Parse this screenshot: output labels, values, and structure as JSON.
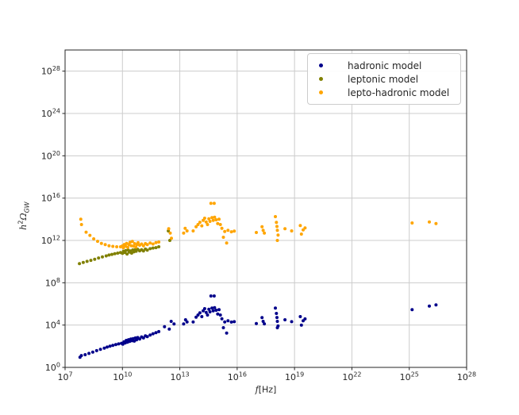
{
  "chart_data": {
    "type": "scatter",
    "title": "",
    "xlabel": "f[Hz]",
    "ylabel": "h^2*Omega_GW",
    "xscale": "log",
    "yscale": "log",
    "xlim_log10": [
      7,
      28
    ],
    "ylim_log10": [
      0,
      30
    ],
    "x_ticks_log10": [
      7,
      10,
      13,
      16,
      19,
      22,
      25,
      28
    ],
    "y_ticks_log10": [
      0,
      4,
      8,
      12,
      16,
      20,
      24,
      28
    ],
    "grid": true,
    "grid_color": "#cccccc",
    "spine_color": "#262626",
    "legend_position": "upper right",
    "xlabel_parts": {
      "var": "f",
      "unit": "[Hz]"
    },
    "ylabel_parts": {
      "var": "h",
      "exp": "2",
      "symbol": "Ω",
      "sub": "GW"
    },
    "tick_mantissa": "10",
    "series": [
      {
        "name": "hadronic model",
        "color": "#00008b",
        "marker": "dot",
        "points_log10": [
          [
            7.78,
            0.95
          ],
          [
            7.85,
            1.12
          ],
          [
            8.05,
            1.2
          ],
          [
            8.25,
            1.32
          ],
          [
            8.45,
            1.45
          ],
          [
            8.65,
            1.58
          ],
          [
            8.85,
            1.7
          ],
          [
            9.05,
            1.82
          ],
          [
            9.2,
            1.92
          ],
          [
            9.35,
            2.0
          ],
          [
            9.5,
            2.08
          ],
          [
            9.65,
            2.15
          ],
          [
            9.8,
            2.22
          ],
          [
            9.95,
            2.28
          ],
          [
            10.02,
            2.2
          ],
          [
            10.08,
            2.42
          ],
          [
            10.14,
            2.3
          ],
          [
            10.2,
            2.55
          ],
          [
            10.26,
            2.38
          ],
          [
            10.32,
            2.62
          ],
          [
            10.38,
            2.45
          ],
          [
            10.44,
            2.68
          ],
          [
            10.5,
            2.52
          ],
          [
            10.56,
            2.72
          ],
          [
            10.62,
            2.48
          ],
          [
            10.68,
            2.78
          ],
          [
            10.74,
            2.6
          ],
          [
            10.8,
            2.82
          ],
          [
            10.9,
            2.68
          ],
          [
            11.0,
            2.88
          ],
          [
            11.1,
            2.78
          ],
          [
            11.2,
            2.98
          ],
          [
            11.3,
            2.9
          ],
          [
            11.45,
            3.05
          ],
          [
            11.6,
            3.18
          ],
          [
            11.75,
            3.28
          ],
          [
            11.9,
            3.38
          ],
          [
            12.2,
            3.85
          ],
          [
            12.45,
            3.62
          ],
          [
            12.55,
            4.35
          ],
          [
            12.7,
            4.1
          ],
          [
            13.2,
            4.1
          ],
          [
            13.3,
            4.5
          ],
          [
            13.38,
            4.3
          ],
          [
            13.7,
            4.3
          ],
          [
            13.85,
            4.75
          ],
          [
            13.95,
            4.95
          ],
          [
            14.05,
            5.15
          ],
          [
            14.15,
            4.8
          ],
          [
            14.22,
            5.35
          ],
          [
            14.3,
            5.55
          ],
          [
            14.38,
            5.2
          ],
          [
            14.45,
            4.95
          ],
          [
            14.52,
            5.5
          ],
          [
            14.58,
            5.25
          ],
          [
            14.63,
            6.75
          ],
          [
            14.8,
            6.75
          ],
          [
            14.68,
            5.6
          ],
          [
            14.75,
            5.35
          ],
          [
            14.82,
            5.65
          ],
          [
            14.9,
            5.4
          ],
          [
            14.98,
            5.05
          ],
          [
            15.05,
            5.45
          ],
          [
            15.12,
            4.95
          ],
          [
            15.2,
            4.6
          ],
          [
            15.28,
            3.75
          ],
          [
            15.35,
            4.3
          ],
          [
            15.45,
            3.25
          ],
          [
            15.52,
            4.4
          ],
          [
            15.7,
            4.28
          ],
          [
            15.85,
            4.32
          ],
          [
            17.0,
            4.15
          ],
          [
            17.3,
            4.7
          ],
          [
            17.36,
            4.35
          ],
          [
            17.42,
            4.12
          ],
          [
            18.0,
            5.6
          ],
          [
            18.05,
            5.1
          ],
          [
            18.08,
            4.72
          ],
          [
            18.1,
            4.35
          ],
          [
            18.14,
            3.92
          ],
          [
            18.1,
            3.75
          ],
          [
            18.5,
            4.5
          ],
          [
            18.85,
            4.32
          ],
          [
            19.3,
            4.8
          ],
          [
            19.36,
            4.0
          ],
          [
            19.45,
            4.4
          ],
          [
            19.55,
            4.58
          ],
          [
            25.15,
            5.45
          ],
          [
            26.05,
            5.8
          ],
          [
            26.4,
            5.9
          ]
        ]
      },
      {
        "name": "leptonic model",
        "color": "#808000",
        "marker": "dot",
        "points_log10": [
          [
            7.75,
            9.8
          ],
          [
            7.95,
            9.92
          ],
          [
            8.15,
            10.02
          ],
          [
            8.35,
            10.12
          ],
          [
            8.55,
            10.22
          ],
          [
            8.75,
            10.34
          ],
          [
            8.95,
            10.44
          ],
          [
            9.15,
            10.54
          ],
          [
            9.3,
            10.62
          ],
          [
            9.45,
            10.68
          ],
          [
            9.6,
            10.74
          ],
          [
            9.75,
            10.8
          ],
          [
            9.9,
            10.85
          ],
          [
            10.0,
            10.78
          ],
          [
            10.06,
            10.98
          ],
          [
            10.12,
            10.85
          ],
          [
            10.18,
            11.05
          ],
          [
            10.24,
            10.72
          ],
          [
            10.3,
            11.08
          ],
          [
            10.36,
            10.9
          ],
          [
            10.42,
            11.0
          ],
          [
            10.48,
            10.8
          ],
          [
            10.54,
            11.1
          ],
          [
            10.6,
            10.92
          ],
          [
            10.66,
            11.12
          ],
          [
            10.72,
            10.98
          ],
          [
            10.8,
            11.15
          ],
          [
            10.9,
            11.02
          ],
          [
            11.0,
            11.12
          ],
          [
            11.1,
            11.0
          ],
          [
            11.2,
            11.18
          ],
          [
            11.3,
            11.08
          ],
          [
            11.45,
            11.22
          ],
          [
            11.6,
            11.28
          ],
          [
            11.75,
            11.32
          ],
          [
            11.9,
            11.4
          ],
          [
            12.4,
            12.9
          ],
          [
            12.48,
            12.0
          ]
        ]
      },
      {
        "name": "lepto-hadronic model",
        "color": "#ffa500",
        "marker": "dot",
        "points_log10": [
          [
            7.82,
            14.0
          ],
          [
            7.86,
            13.5
          ],
          [
            8.1,
            12.78
          ],
          [
            8.3,
            12.48
          ],
          [
            8.5,
            12.15
          ],
          [
            8.7,
            11.92
          ],
          [
            8.9,
            11.72
          ],
          [
            9.1,
            11.6
          ],
          [
            9.3,
            11.5
          ],
          [
            9.5,
            11.44
          ],
          [
            9.7,
            11.4
          ],
          [
            9.9,
            11.4
          ],
          [
            10.0,
            11.48
          ],
          [
            10.05,
            11.3
          ],
          [
            10.1,
            11.62
          ],
          [
            10.16,
            11.45
          ],
          [
            10.22,
            11.72
          ],
          [
            10.28,
            11.35
          ],
          [
            10.34,
            11.6
          ],
          [
            10.4,
            11.82
          ],
          [
            10.46,
            11.5
          ],
          [
            10.52,
            11.9
          ],
          [
            10.58,
            11.45
          ],
          [
            10.64,
            11.7
          ],
          [
            10.7,
            11.38
          ],
          [
            10.76,
            11.62
          ],
          [
            10.82,
            11.78
          ],
          [
            10.9,
            11.55
          ],
          [
            11.0,
            11.66
          ],
          [
            11.1,
            11.5
          ],
          [
            11.2,
            11.7
          ],
          [
            11.3,
            11.6
          ],
          [
            11.45,
            11.75
          ],
          [
            11.6,
            11.66
          ],
          [
            11.75,
            11.8
          ],
          [
            11.9,
            11.85
          ],
          [
            12.42,
            13.1
          ],
          [
            12.5,
            12.7
          ],
          [
            12.56,
            12.2
          ],
          [
            13.2,
            12.7
          ],
          [
            13.28,
            13.15
          ],
          [
            13.38,
            12.9
          ],
          [
            13.7,
            12.9
          ],
          [
            13.85,
            13.3
          ],
          [
            13.95,
            13.5
          ],
          [
            14.05,
            13.72
          ],
          [
            14.15,
            13.38
          ],
          [
            14.22,
            13.9
          ],
          [
            14.3,
            14.1
          ],
          [
            14.38,
            13.75
          ],
          [
            14.45,
            13.5
          ],
          [
            14.52,
            14.05
          ],
          [
            14.58,
            13.8
          ],
          [
            14.63,
            15.5
          ],
          [
            14.8,
            15.5
          ],
          [
            14.68,
            14.15
          ],
          [
            14.75,
            13.9
          ],
          [
            14.82,
            14.2
          ],
          [
            14.9,
            13.95
          ],
          [
            14.98,
            13.6
          ],
          [
            15.05,
            14.0
          ],
          [
            15.12,
            13.5
          ],
          [
            15.2,
            13.15
          ],
          [
            15.28,
            12.3
          ],
          [
            15.35,
            12.85
          ],
          [
            15.45,
            11.75
          ],
          [
            15.52,
            12.95
          ],
          [
            15.7,
            12.82
          ],
          [
            15.85,
            12.88
          ],
          [
            17.0,
            12.75
          ],
          [
            17.3,
            13.3
          ],
          [
            17.36,
            12.95
          ],
          [
            17.42,
            12.7
          ],
          [
            18.0,
            14.25
          ],
          [
            18.05,
            13.7
          ],
          [
            18.08,
            13.32
          ],
          [
            18.1,
            12.95
          ],
          [
            18.14,
            12.5
          ],
          [
            18.1,
            12.0
          ],
          [
            18.5,
            13.1
          ],
          [
            18.85,
            12.9
          ],
          [
            19.3,
            13.4
          ],
          [
            19.36,
            12.6
          ],
          [
            19.45,
            13.0
          ],
          [
            19.55,
            13.18
          ],
          [
            25.15,
            13.65
          ],
          [
            26.05,
            13.75
          ],
          [
            26.4,
            13.6
          ]
        ]
      }
    ]
  }
}
